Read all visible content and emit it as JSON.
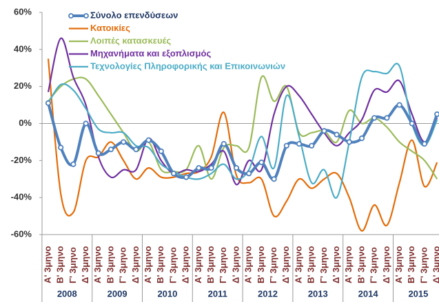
{
  "chart_data": {
    "type": "line",
    "categories": [
      "Α' 3μηνο",
      "Β' 3μηνο",
      "Γ' 3μηνο",
      "Δ' 3μηνο",
      "Α' 3μηνο",
      "Β' 3μηνο",
      "Γ' 3μηνο",
      "Δ' 3μηνο",
      "Α' 3μηνο",
      "Β' 3μηνο",
      "Γ' 3μηνο",
      "Δ' 3μηνο",
      "Α' 3μηνο",
      "Β' 3μηνο",
      "Γ' 3μηνο",
      "Δ' 3μηνο",
      "Α' 3μηνο",
      "Β' 3μηνο",
      "Γ' 3μηνο",
      "Δ' 3μηνο",
      "Α' 3μηνο",
      "Β' 3μηνο",
      "Γ' 3μηνο",
      "Δ' 3μηνο",
      "Α' 3μηνο",
      "Β' 3μηνο",
      "Γ' 3μηνο",
      "Δ' 3μηνο",
      "Α' 3μηνο",
      "Β' 3μηνο",
      "Γ' 3μηνο",
      "Δ' 3μηνο"
    ],
    "group_labels": [
      "2008",
      "2009",
      "2010",
      "2011",
      "2012",
      "2013",
      "2014",
      "2015"
    ],
    "ylim": [
      -60,
      60
    ],
    "yticks": [
      {
        "value": -60,
        "label": "-60%"
      },
      {
        "value": -40,
        "label": "-40%"
      },
      {
        "value": -20,
        "label": "-20%"
      },
      {
        "value": 0,
        "label": "0%"
      },
      {
        "value": 20,
        "label": "20%"
      },
      {
        "value": 40,
        "label": "40%"
      },
      {
        "value": 60,
        "label": "60%"
      }
    ],
    "grid": false,
    "legend_position": "top-left",
    "series": [
      {
        "name": "Σύνολο επενδύσεων",
        "color": "#4f81bd",
        "markers": true,
        "values": [
          11,
          -13,
          -22,
          0,
          -16,
          -14,
          -10,
          -14,
          -9,
          -15,
          -27,
          -29,
          -24,
          -24,
          -11,
          -24,
          -27,
          -21,
          -30,
          -12,
          -11,
          -12,
          -4,
          -6,
          -10,
          -8,
          3,
          3,
          10,
          0,
          -11,
          5
        ]
      },
      {
        "name": "Κατοικίες",
        "color": "#e36c09",
        "markers": false,
        "values": [
          35,
          -38,
          -48,
          -20,
          -18,
          -10,
          -20,
          -30,
          -24,
          -29,
          -29,
          -27,
          -26,
          -18,
          6,
          -28,
          -32,
          -30,
          -50,
          -42,
          -30,
          -35,
          -30,
          -27,
          -40,
          -58,
          -44,
          -55,
          -32,
          -9,
          -34,
          -21
        ]
      },
      {
        "name": "Λοιπές κατασκευές",
        "color": "#9bbb59",
        "markers": false,
        "values": [
          12,
          20,
          24,
          24,
          15,
          5,
          -5,
          -15,
          -10,
          -25,
          -26,
          -25,
          -12,
          -30,
          -13,
          -12,
          -13,
          25,
          12,
          20,
          -5,
          -5,
          -4,
          -10,
          7,
          0,
          3,
          -2,
          -10,
          -15,
          -20,
          -30
        ]
      },
      {
        "name": "Μηχανήματα και εξοπλισμός",
        "color": "#7030a0",
        "markers": false,
        "values": [
          17,
          46,
          25,
          10,
          -18,
          -29,
          -25,
          -25,
          -8,
          -20,
          -27,
          -25,
          -26,
          -22,
          -15,
          -33,
          -20,
          -25,
          5,
          20,
          15,
          5,
          -5,
          -12,
          -5,
          2,
          18,
          17,
          23,
          5,
          -10,
          3
        ]
      },
      {
        "name": "Τεχνολογίες Πληροφορικής και Επικοινωνιών",
        "color": "#4bacc6",
        "markers": false,
        "values": [
          11,
          21,
          18,
          8,
          -3,
          -5,
          -5,
          -12,
          -13,
          -22,
          -26,
          -29,
          -30,
          -27,
          -22,
          -30,
          -25,
          -7,
          -24,
          15,
          -7,
          -32,
          -25,
          -40,
          -10,
          25,
          28,
          27,
          31,
          0,
          -12,
          2
        ]
      }
    ]
  }
}
